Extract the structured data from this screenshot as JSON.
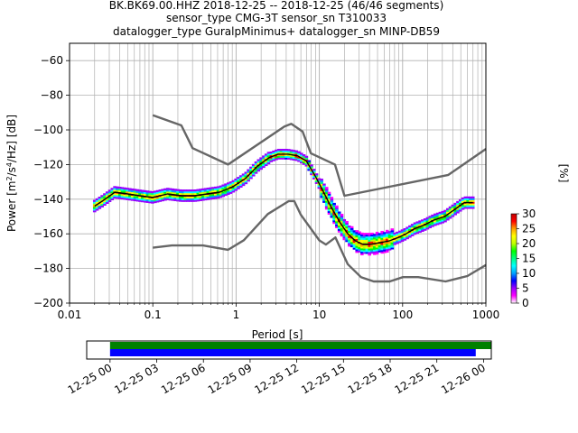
{
  "title": {
    "line1": "BK.BK69.00.HHZ   2018-12-25 -- 2018-12-25  (46/46 segments)",
    "line2": "sensor_type CMG-3T sensor_sn T310033",
    "line3": "datalogger_type GuralpMinimus+ datalogger_sn MINP-DB59"
  },
  "chart_data": [
    {
      "type": "heatmap",
      "subtype": "probabilistic power spectral density",
      "xlabel": "Period [s]",
      "ylabel": "Power [m²/s⁴/Hz] [dB]",
      "xscale": "log",
      "xlim": [
        0.01,
        1000
      ],
      "ylim": [
        -200,
        -50
      ],
      "grid": true,
      "x_ticks": [
        {
          "value": 0.01,
          "label": "0.01"
        },
        {
          "value": 0.1,
          "label": "0.1"
        },
        {
          "value": 1,
          "label": "1"
        },
        {
          "value": 10,
          "label": "10"
        },
        {
          "value": 100,
          "label": "100"
        },
        {
          "value": 1000,
          "label": "1000"
        }
      ],
      "y_ticks": [
        {
          "value": -60,
          "label": "−60"
        },
        {
          "value": -80,
          "label": "−80"
        },
        {
          "value": -100,
          "label": "−100"
        },
        {
          "value": -120,
          "label": "−120"
        },
        {
          "value": -140,
          "label": "−140"
        },
        {
          "value": -160,
          "label": "−160"
        },
        {
          "value": -180,
          "label": "−180"
        },
        {
          "value": -200,
          "label": "−200"
        }
      ],
      "noise_model_high": {
        "x": [
          0.1,
          0.22,
          0.3,
          0.8,
          3.8,
          4.6,
          6.3,
          7.9,
          15.4,
          20,
          354,
          1000
        ],
        "y": [
          -91.5,
          -97.4,
          -110.5,
          -120,
          -98,
          -96.5,
          -101,
          -113.5,
          -120,
          -138,
          -126,
          -111
        ]
      },
      "noise_model_low": {
        "x": [
          0.1,
          0.17,
          0.4,
          0.8,
          1.24,
          2.4,
          4.3,
          5,
          6,
          10,
          12,
          15.6,
          21.9,
          31.6,
          45,
          70,
          101,
          154,
          328,
          600,
          1000
        ],
        "y": [
          -168,
          -166.7,
          -166.7,
          -169.2,
          -163.7,
          -148.6,
          -141.1,
          -141.1,
          -149.0,
          -163.8,
          -166.2,
          -162.1,
          -177.5,
          -185.0,
          -187.5,
          -187.5,
          -185.0,
          -185.0,
          -187.5,
          -184.4,
          -178
        ]
      },
      "mode_curve": {
        "x": [
          0.02,
          0.025,
          0.035,
          0.05,
          0.07,
          0.1,
          0.15,
          0.22,
          0.32,
          0.45,
          0.63,
          0.9,
          1.3,
          1.8,
          2.5,
          3.2,
          4.2,
          5.5,
          7,
          9,
          11,
          14,
          18,
          22,
          27,
          33,
          42,
          55,
          70,
          90,
          110,
          140,
          180,
          240,
          320,
          420,
          550,
          700
        ],
        "y": [
          -144,
          -141,
          -136,
          -137,
          -138,
          -139,
          -137,
          -138,
          -138,
          -137,
          -136,
          -133,
          -128,
          -121,
          -116,
          -114,
          -114,
          -115,
          -118,
          -127,
          -135,
          -145,
          -154,
          -160,
          -164,
          -166,
          -166,
          -165,
          -164,
          -162,
          -160,
          -157,
          -155,
          -152,
          -150,
          -146,
          -142,
          -142
        ]
      },
      "colorbar": {
        "label": "[%]",
        "min": 0,
        "max": 30,
        "ticks": [
          {
            "value": 0,
            "label": "0"
          },
          {
            "value": 5,
            "label": "5"
          },
          {
            "value": 10,
            "label": "10"
          },
          {
            "value": 15,
            "label": "15"
          },
          {
            "value": 20,
            "label": "20"
          },
          {
            "value": 25,
            "label": "25"
          },
          {
            "value": 30,
            "label": "30"
          }
        ],
        "colors": [
          "#ffffff",
          "#ff00ff",
          "#9a00ff",
          "#0000ff",
          "#00a0ff",
          "#00ffff",
          "#00ff80",
          "#00ff00",
          "#c0ff00",
          "#ffff00",
          "#ffa000",
          "#ff0000",
          "#c00000"
        ]
      }
    },
    {
      "type": "timeline",
      "xlim": [
        "2018-12-24 22:30",
        "2018-12-26 00:30"
      ],
      "x_ticks": [
        {
          "value": "2018-12-25 00:00",
          "label": "12-25 00"
        },
        {
          "value": "2018-12-25 03:00",
          "label": "12-25 03"
        },
        {
          "value": "2018-12-25 06:00",
          "label": "12-25 06"
        },
        {
          "value": "2018-12-25 09:00",
          "label": "12-25 09"
        },
        {
          "value": "2018-12-25 12:00",
          "label": "12-25 12"
        },
        {
          "value": "2018-12-25 15:00",
          "label": "12-25 15"
        },
        {
          "value": "2018-12-25 18:00",
          "label": "12-25 18"
        },
        {
          "value": "2018-12-25 21:00",
          "label": "12-25 21"
        },
        {
          "value": "2018-12-26 00:00",
          "label": "12-26 00"
        }
      ],
      "coverage_bars": [
        {
          "start": "2018-12-25 00:00",
          "end": "2018-12-25 24:30",
          "color": "#008000"
        },
        {
          "start": "2018-12-25 00:00",
          "end": "2018-12-25 23:30",
          "color": "#0000ff"
        }
      ]
    }
  ]
}
